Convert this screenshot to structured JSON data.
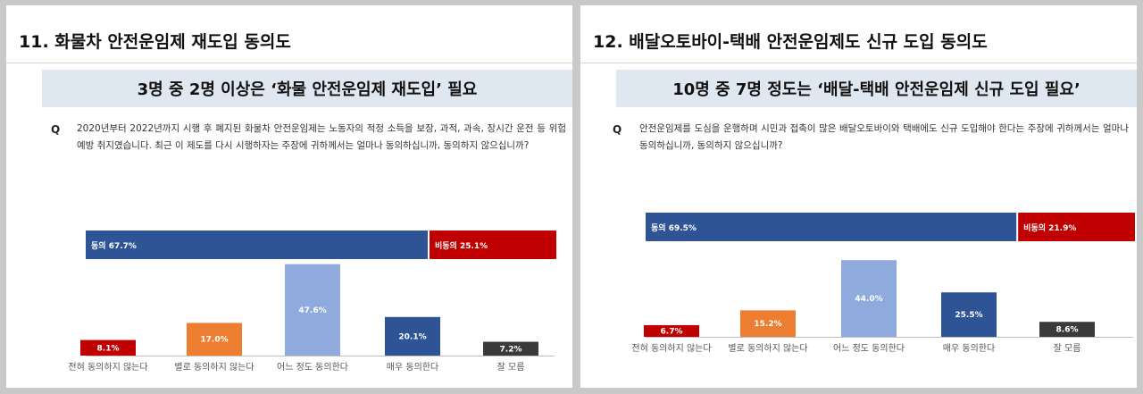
{
  "panels": [
    {
      "title": "11. 화물차 안전운임제 재도입 동의도",
      "banner": "3명 중 2명 이상은 ‘화물 안전운임제 재도입’ 필요",
      "question_mark": "Q",
      "question": "2020년부터 2022년까지 시행 후 폐지된 화물차 안전운임제는 노동자의 적정 소득을 보장, 과적, 과속, 장시간 운전 등 위험 예방 취지였습니다. 최근 이 제도를 다시 시행하자는 주장에 귀하께서는 얼마나 동의하십니까, 동의하지 않으십니까?"
    },
    {
      "title": "12. 배달오토바이-택배 안전운임제도 신규 도입 동의도",
      "banner": "10명 중 7명 정도는 ‘배달-택배 안전운임제 신규 도입 필요’",
      "question_mark": "Q",
      "question": "안전운임제를 도심을 운행하며 시민과 접촉이 많은 배달오토바이와 택배에도 신규 도입해야 한다는 주장에 귀하께서는 얼마나 동의하십니까, 동의하지 않으십니까?"
    }
  ],
  "chart_data": [
    {
      "type": "bar",
      "categories": [
        "전혀 동의하지 않는다",
        "별로 동의하지 않는다",
        "어느 정도 동의한다",
        "매우 동의한다",
        "잘 모름"
      ],
      "values": [
        8.1,
        17.0,
        47.6,
        20.1,
        7.2
      ],
      "value_labels": [
        "8.1%",
        "17.0%",
        "47.6%",
        "20.1%",
        "7.2%"
      ],
      "colors": [
        "#c00000",
        "#ed7d31",
        "#8faadc",
        "#2f5496",
        "#3a3a3a"
      ],
      "summary": [
        {
          "label": "동의 67.7%",
          "value": 67.7,
          "color": "#2f5496"
        },
        {
          "label": "비동의 25.1%",
          "value": 25.1,
          "color": "#c00000"
        }
      ]
    },
    {
      "type": "bar",
      "categories": [
        "전혀 동의하지 않는다",
        "별로 동의하지 않는다",
        "어느 정도 동의한다",
        "매우 동의한다",
        "잘 모름"
      ],
      "values": [
        6.7,
        15.2,
        44.0,
        25.5,
        8.6
      ],
      "value_labels": [
        "6.7%",
        "15.2%",
        "44.0%",
        "25.5%",
        "8.6%"
      ],
      "colors": [
        "#c00000",
        "#ed7d31",
        "#8faadc",
        "#2f5496",
        "#3a3a3a"
      ],
      "summary": [
        {
          "label": "동의 69.5%",
          "value": 69.5,
          "color": "#2f5496"
        },
        {
          "label": "비동의 21.9%",
          "value": 21.9,
          "color": "#c00000"
        }
      ]
    }
  ]
}
